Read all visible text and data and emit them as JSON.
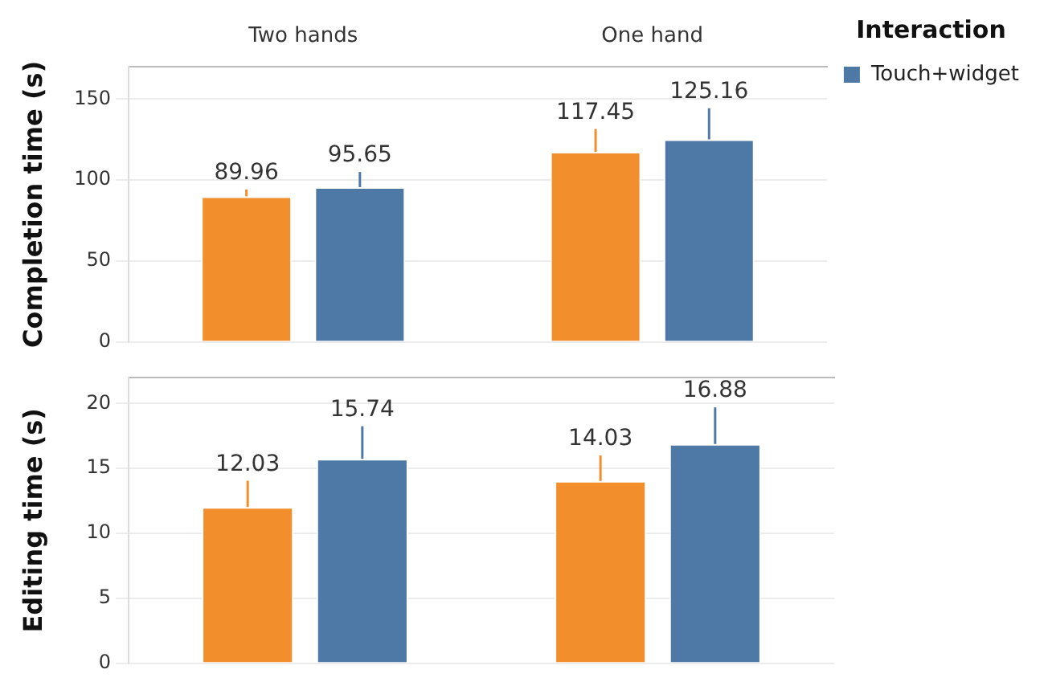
{
  "chart_data": [
    {
      "type": "bar",
      "ylabel": "Completion time (s)",
      "categories": [
        "Two hands",
        "One hand"
      ],
      "series": [
        {
          "color": "#f28e2b",
          "values": [
            89.96,
            117.45
          ],
          "errors": [
            [
              89.96,
              94.2
            ],
            [
              117.45,
              131.6
            ]
          ]
        },
        {
          "name": "Touch+widget",
          "color": "#4e79a7",
          "values": [
            95.65,
            125.16
          ],
          "errors": [
            [
              95.65,
              105
            ],
            [
              125.16,
              144.4
            ]
          ]
        }
      ],
      "ylim": [
        0,
        170
      ],
      "yticks": [
        0,
        50,
        100,
        150
      ],
      "grid": "y",
      "data_labels": true,
      "legend": "right",
      "legend_title": "Interaction"
    },
    {
      "type": "bar",
      "ylabel": "Editing time (s)",
      "categories": [
        null,
        null
      ],
      "series": [
        {
          "color": "#f28e2b",
          "values": [
            12.03,
            14.03
          ],
          "errors": [
            [
              12.03,
              14.05
            ],
            [
              14.03,
              16.0
            ]
          ]
        },
        {
          "color": "#4e79a7",
          "values": [
            15.74,
            16.88
          ],
          "errors": [
            [
              15.74,
              18.25
            ],
            [
              16.88,
              19.7
            ]
          ]
        }
      ],
      "ylim": [
        0,
        22
      ],
      "yticks": [
        0,
        5,
        10,
        15,
        20
      ],
      "grid": "y",
      "tick_labels": "y",
      "data_labels": true
    }
  ]
}
